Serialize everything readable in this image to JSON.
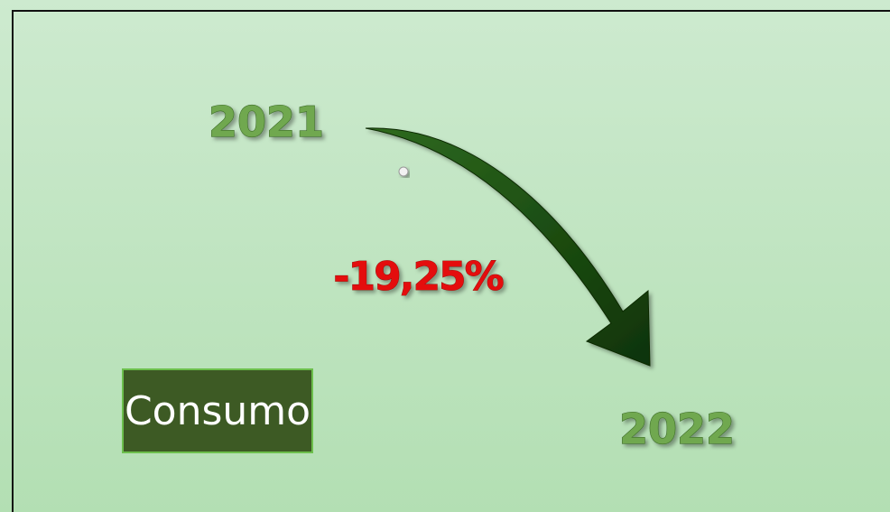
{
  "labels": {
    "from_year": "2021",
    "change": "-19,25%",
    "to_year": "2022",
    "category": "Consumo"
  }
}
